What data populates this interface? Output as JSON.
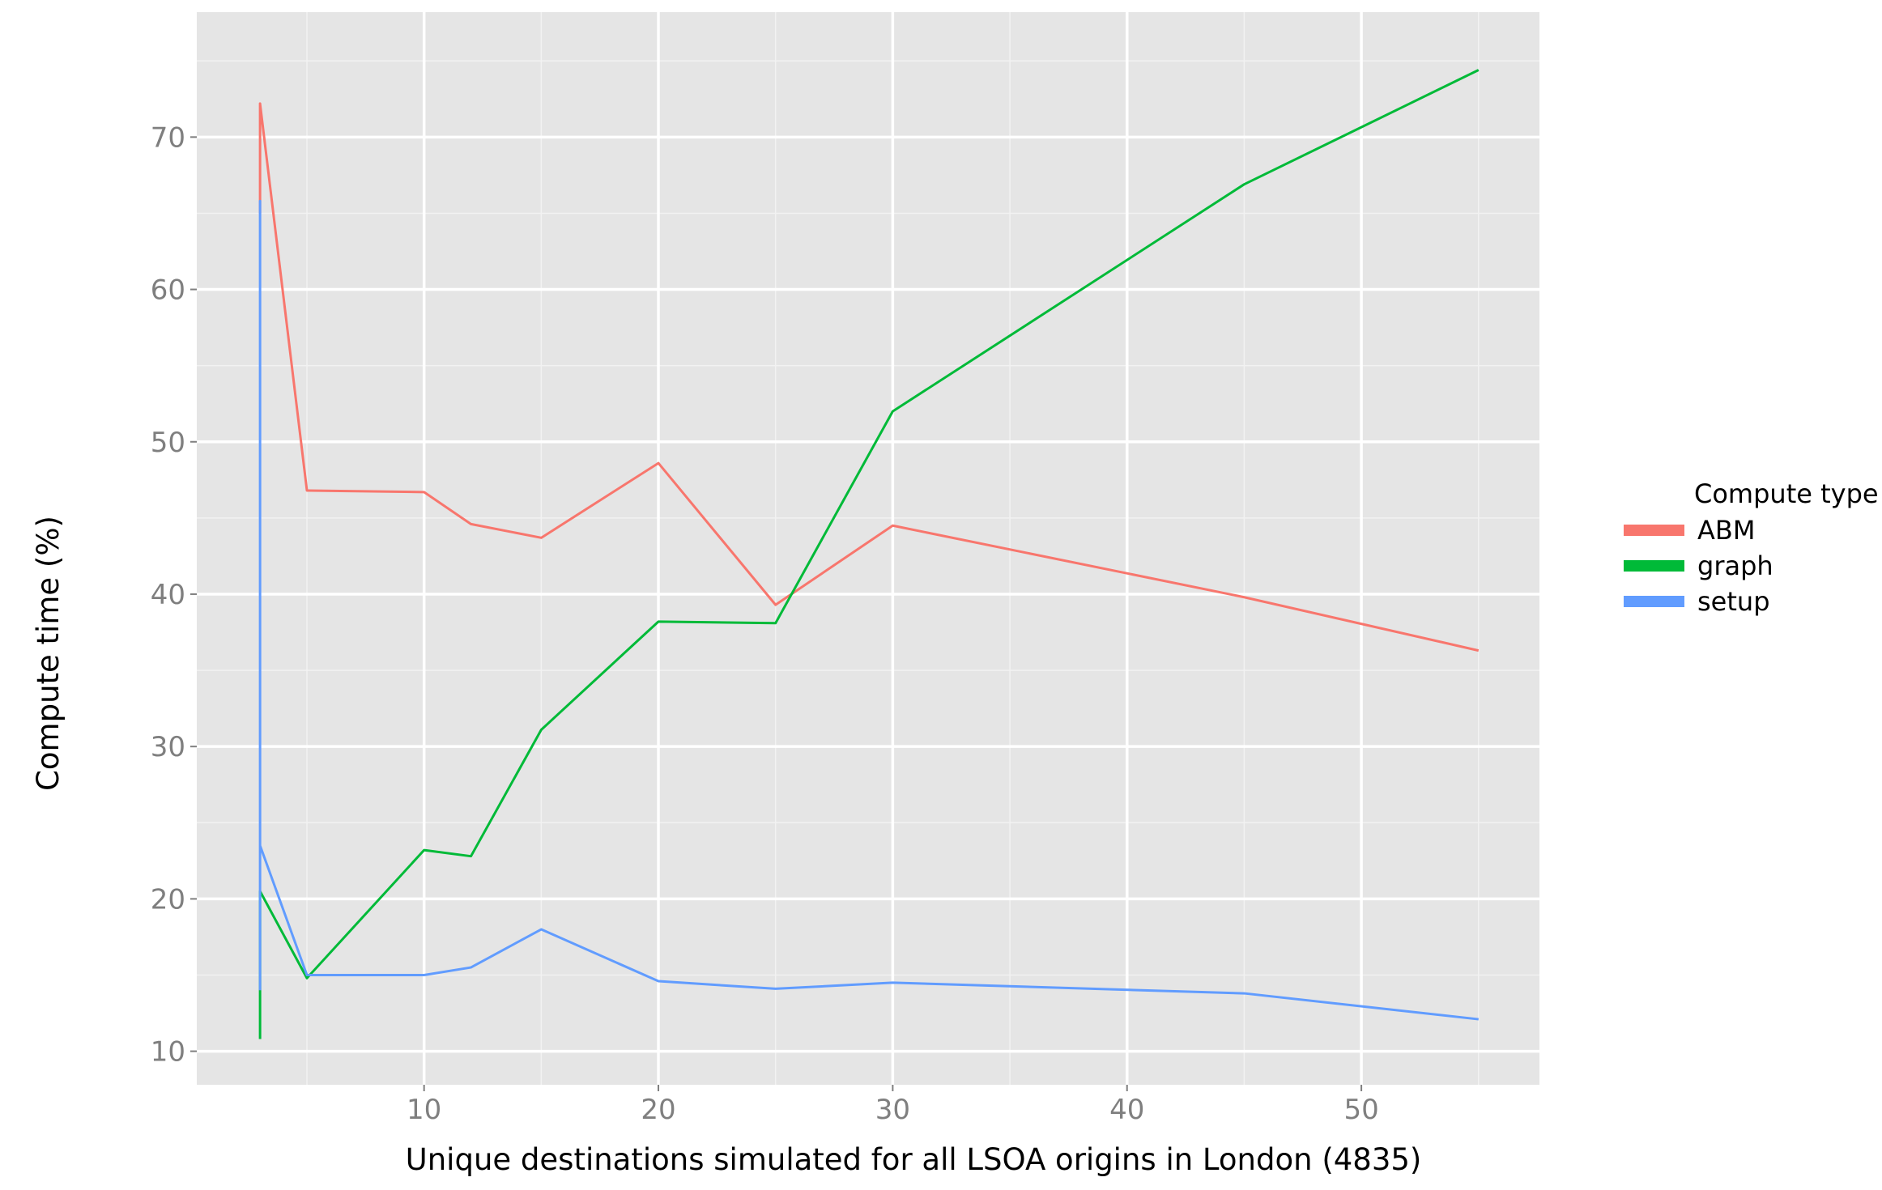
{
  "chart_data": {
    "type": "line",
    "title": "",
    "xlabel": "Unique destinations simulated for all LSOA origins in London (4835)",
    "ylabel": "Compute time (%)",
    "xlim": [
      0.3,
      57.6
    ],
    "ylim": [
      7.8,
      78.2
    ],
    "x_ticks": [
      10,
      20,
      30,
      40,
      50
    ],
    "x_tick_labels": [
      "10",
      "20",
      "30",
      "40",
      "50"
    ],
    "y_ticks": [
      10,
      20,
      30,
      40,
      50,
      60,
      70
    ],
    "y_tick_labels": [
      "10",
      "20",
      "30",
      "40",
      "50",
      "60",
      "70"
    ],
    "grid": true,
    "legend": {
      "title": "Compute type",
      "position": "right"
    },
    "series": [
      {
        "name": "ABM",
        "color": "#F8766D",
        "points": [
          [
            3,
            65
          ],
          [
            3,
            72.2
          ],
          [
            5,
            46.8
          ],
          [
            10,
            46.7
          ],
          [
            12,
            44.6
          ],
          [
            15,
            43.7
          ],
          [
            20,
            48.6
          ],
          [
            25,
            39.3
          ],
          [
            30,
            44.5
          ],
          [
            45,
            39.8
          ],
          [
            55,
            36.3
          ]
        ]
      },
      {
        "name": "graph",
        "color": "#00BA38",
        "points": [
          [
            3,
            10.8
          ],
          [
            3,
            20.5
          ],
          [
            5,
            14.8
          ],
          [
            10,
            23.2
          ],
          [
            12,
            22.8
          ],
          [
            15,
            31.1
          ],
          [
            20,
            38.2
          ],
          [
            25,
            38.1
          ],
          [
            30,
            52
          ],
          [
            45,
            66.9
          ],
          [
            55,
            74.4
          ]
        ]
      },
      {
        "name": "setup",
        "color": "#619CFF",
        "points": [
          [
            3,
            14
          ],
          [
            3,
            65.8
          ],
          [
            3,
            23.5
          ],
          [
            5,
            15
          ],
          [
            10,
            15
          ],
          [
            12,
            15.5
          ],
          [
            15,
            18
          ],
          [
            20,
            14.6
          ],
          [
            25,
            14.1
          ],
          [
            30,
            14.5
          ],
          [
            45,
            13.8
          ],
          [
            55,
            12.1
          ]
        ]
      }
    ]
  }
}
